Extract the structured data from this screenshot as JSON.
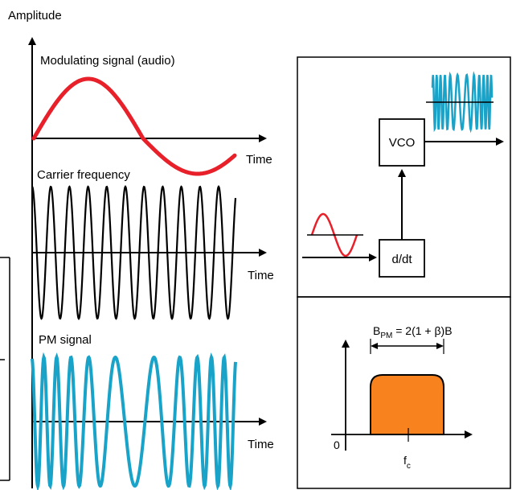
{
  "left_panel": {
    "y_axis_label": "Amplitude",
    "modulating_label": "Modulating signal (audio)",
    "carrier_label": "Carrier frequency",
    "pm_label": "PM signal",
    "time_label_1": "Time",
    "time_label_2": "Time",
    "time_label_3": "Time"
  },
  "block_diagram": {
    "vco_label": "VCO",
    "differentiator_label": "d/dt"
  },
  "spectrum": {
    "bandwidth_label_prefix": "B",
    "bandwidth_label_subscript": "PM",
    "bandwidth_label_rest": " = 2(1 + β)B",
    "origin_label": "0",
    "carrier_label": "f",
    "carrier_label_subscript": "c"
  },
  "colors": {
    "modulating": "#e8202a",
    "carrier": "#000000",
    "pm": "#1aa3c9",
    "spectrum_fill": "#f7821e"
  }
}
